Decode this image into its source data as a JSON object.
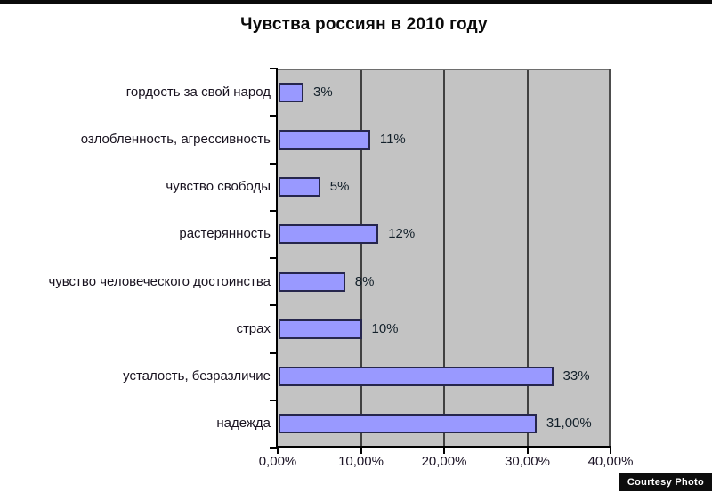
{
  "title": "Чувства россиян в 2010 году",
  "watermark": "Courtesy Photo",
  "chart_data": {
    "type": "bar",
    "orientation": "horizontal",
    "title": "Чувства россиян в 2010 году",
    "categories": [
      "гордость за свой народ",
      "озлобленность, агрессивность",
      "чувство свободы",
      "растерянность",
      "чувство человеческого достоинства",
      "страх",
      "усталость, безразличие",
      "надежда"
    ],
    "values": [
      3,
      11,
      5,
      12,
      8,
      10,
      33,
      31
    ],
    "data_labels": [
      "3%",
      "11%",
      "5%",
      "12%",
      "8%",
      "10%",
      "33%",
      "31,00%"
    ],
    "x_ticks": [
      "0,00%",
      "10,00%",
      "20,00%",
      "30,00%",
      "40,00%"
    ],
    "xlim": [
      0,
      40
    ],
    "grid": true,
    "legend": false,
    "xlabel": "",
    "ylabel": "",
    "colors": {
      "bar_fill": "#9999FF",
      "bar_border": "#26264D",
      "plot_background": "#C3C3C3",
      "gridline": "#404040",
      "axis": "#000000",
      "text": "#111111",
      "chart_background": "#FFFFFF",
      "watermark_background": "#0D0D0D",
      "watermark_text": "#FFFFFF"
    }
  }
}
